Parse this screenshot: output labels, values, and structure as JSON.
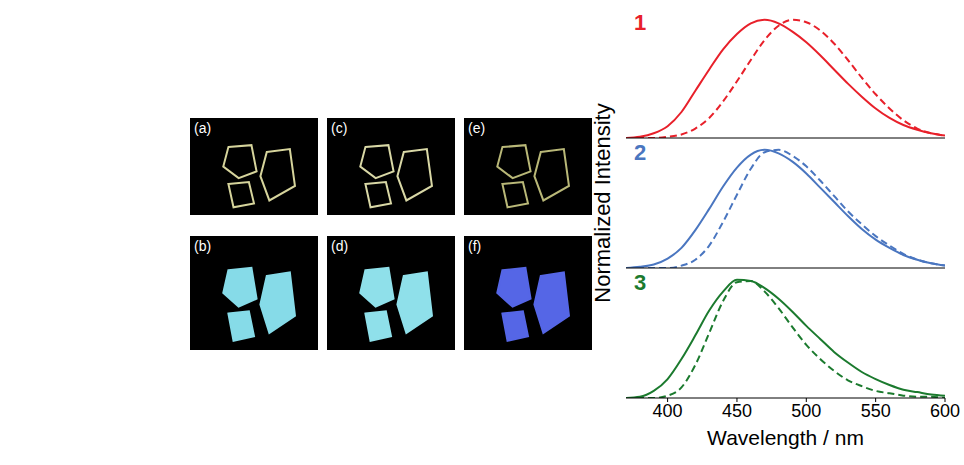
{
  "images": [
    {
      "label": "(a)"
    },
    {
      "label": "(b)"
    },
    {
      "label": "(c)"
    },
    {
      "label": "(d)"
    },
    {
      "label": "(e)"
    },
    {
      "label": "(f)"
    }
  ],
  "chart_data": [
    {
      "type": "line",
      "title": "1",
      "color": "#e8202a",
      "x": [
        370,
        380,
        390,
        400,
        410,
        420,
        430,
        440,
        450,
        460,
        470,
        480,
        490,
        500,
        510,
        520,
        530,
        540,
        550,
        560,
        570,
        580,
        590,
        600
      ],
      "series": [
        {
          "color": "#e8202a",
          "line_style": "solid",
          "values": [
            0,
            0.01,
            0.04,
            0.1,
            0.22,
            0.4,
            0.58,
            0.75,
            0.88,
            0.97,
            1.0,
            0.97,
            0.9,
            0.81,
            0.7,
            0.58,
            0.46,
            0.35,
            0.25,
            0.17,
            0.11,
            0.07,
            0.04,
            0.02
          ]
        },
        {
          "color": "#e8202a",
          "line_style": "dashed",
          "values": [
            0,
            0,
            0,
            0.01,
            0.03,
            0.08,
            0.17,
            0.31,
            0.48,
            0.66,
            0.83,
            0.95,
            1.0,
            0.98,
            0.91,
            0.8,
            0.66,
            0.51,
            0.37,
            0.25,
            0.15,
            0.08,
            0.04,
            0.02
          ]
        }
      ],
      "xlim": [
        370,
        600
      ],
      "xticks": [
        400,
        450,
        500,
        550,
        600
      ],
      "ylim": [
        0,
        1.1
      ],
      "tick_labels": false
    },
    {
      "type": "line",
      "title": "2",
      "color": "#4a76c0",
      "ylabel": "Normalized Intensity",
      "x": [
        370,
        380,
        390,
        400,
        410,
        420,
        430,
        440,
        450,
        460,
        470,
        480,
        490,
        500,
        510,
        520,
        530,
        540,
        550,
        560,
        570,
        580,
        590,
        600
      ],
      "series": [
        {
          "color": "#4a76c0",
          "line_style": "solid",
          "values": [
            0,
            0.01,
            0.03,
            0.08,
            0.17,
            0.32,
            0.5,
            0.69,
            0.85,
            0.96,
            1.0,
            0.97,
            0.9,
            0.8,
            0.68,
            0.56,
            0.44,
            0.33,
            0.24,
            0.17,
            0.11,
            0.07,
            0.04,
            0.02
          ]
        },
        {
          "color": "#4a76c0",
          "line_style": "dashed",
          "values": [
            0,
            0,
            0,
            0,
            0.02,
            0.07,
            0.19,
            0.39,
            0.62,
            0.84,
            0.98,
            1.0,
            0.95,
            0.86,
            0.74,
            0.61,
            0.48,
            0.37,
            0.27,
            0.19,
            0.12,
            0.07,
            0.04,
            0.02
          ]
        }
      ],
      "xlim": [
        370,
        600
      ],
      "xticks": [
        400,
        450,
        500,
        550,
        600
      ],
      "ylim": [
        0,
        1.1
      ],
      "tick_labels": false
    },
    {
      "type": "line",
      "title": "3",
      "color": "#1b7a2e",
      "xlabel": "Wavelength / nm",
      "x": [
        370,
        380,
        390,
        400,
        410,
        420,
        430,
        440,
        450,
        460,
        470,
        480,
        490,
        500,
        510,
        520,
        530,
        540,
        550,
        560,
        570,
        580,
        590,
        600
      ],
      "series": [
        {
          "color": "#1b7a2e",
          "line_style": "solid",
          "values": [
            0,
            0.01,
            0.06,
            0.16,
            0.33,
            0.53,
            0.74,
            0.9,
            1.0,
            0.99,
            0.93,
            0.84,
            0.73,
            0.61,
            0.5,
            0.39,
            0.3,
            0.22,
            0.16,
            0.11,
            0.07,
            0.05,
            0.03,
            0.02
          ]
        },
        {
          "color": "#1b7a2e",
          "line_style": "dashed",
          "values": [
            0,
            0,
            0,
            0.02,
            0.09,
            0.28,
            0.55,
            0.82,
            0.98,
            0.99,
            0.9,
            0.76,
            0.6,
            0.45,
            0.33,
            0.23,
            0.15,
            0.1,
            0.06,
            0.04,
            0.02,
            0.01,
            0.01,
            0
          ]
        }
      ],
      "xlim": [
        370,
        600
      ],
      "xticks": [
        400,
        450,
        500,
        550,
        600
      ],
      "ylim": [
        0,
        1.1
      ],
      "tick_labels": "x"
    }
  ]
}
